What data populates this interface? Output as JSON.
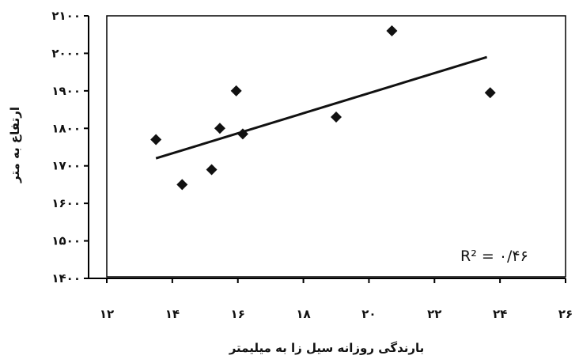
{
  "chart_data": {
    "type": "scatter",
    "xlabel": "بارندگی روزانه سیل زا به میلیمتر",
    "ylabel": "ارتفاع به متر",
    "xlim": [
      12,
      26
    ],
    "ylim": [
      1400,
      2100
    ],
    "x_ticks": [
      12,
      14,
      16,
      18,
      20,
      22,
      24,
      26
    ],
    "x_tick_labels": [
      "۱۲",
      "۱۴",
      "۱۶",
      "۱۸",
      "۲۰",
      "۲۲",
      "۲۴",
      "۲۶"
    ],
    "y_ticks": [
      1400,
      1500,
      1600,
      1700,
      1800,
      1900,
      2000,
      2100
    ],
    "y_tick_labels": [
      "۱۴۰۰",
      "۱۵۰۰",
      "۱۶۰۰",
      "۱۷۰۰",
      "۱۸۰۰",
      "۱۹۰۰",
      "۲۰۰۰",
      "۲۱۰۰"
    ],
    "points": [
      {
        "x": 13.5,
        "y": 1770
      },
      {
        "x": 14.3,
        "y": 1650
      },
      {
        "x": 15.2,
        "y": 1690
      },
      {
        "x": 15.45,
        "y": 1800
      },
      {
        "x": 15.95,
        "y": 1900
      },
      {
        "x": 16.15,
        "y": 1785
      },
      {
        "x": 19.0,
        "y": 1830
      },
      {
        "x": 20.7,
        "y": 2060
      },
      {
        "x": 23.7,
        "y": 1895
      }
    ],
    "trendline": {
      "x": [
        13.5,
        23.6
      ],
      "y": [
        1720,
        1990
      ]
    },
    "r_squared_label": "R² = ۰/۴۶",
    "grid": false,
    "marker": "diamond",
    "colors": {
      "marker": "#111111",
      "line": "#111111",
      "frame": "#000000"
    }
  }
}
